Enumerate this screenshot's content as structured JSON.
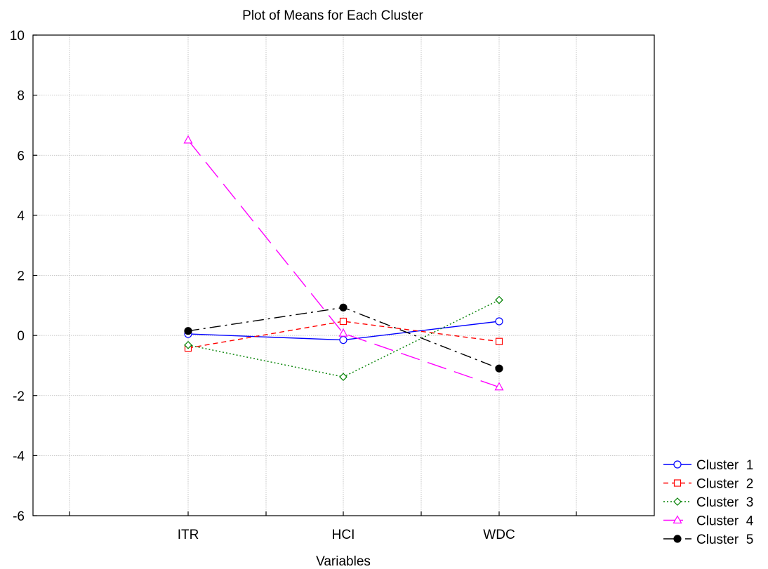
{
  "chart_data": {
    "type": "line",
    "title": "Plot of Means for Each Cluster",
    "xlabel": "Variables",
    "ylabel": "",
    "categories": [
      "ITR",
      "HCI",
      "WDC"
    ],
    "ylim": [
      -6,
      10
    ],
    "yticks": [
      "10",
      "8",
      "6",
      "4",
      "2",
      "0",
      "-2",
      "-4",
      "-6"
    ],
    "ytick_values": [
      10,
      8,
      6,
      4,
      2,
      0,
      -2,
      -4,
      -6
    ],
    "grid": true,
    "legend_position": "bottom-right outside plot",
    "series": [
      {
        "name": "Cluster  1",
        "values": [
          0.05,
          -0.15,
          0.47
        ],
        "color": "#0000ff",
        "dash": "solid",
        "marker": "circle-open"
      },
      {
        "name": "Cluster  2",
        "values": [
          -0.42,
          0.47,
          -0.2
        ],
        "color": "#ff0000",
        "dash": "dashed",
        "marker": "square-open"
      },
      {
        "name": "Cluster  3",
        "values": [
          -0.32,
          -1.38,
          1.18
        ],
        "color": "#008000",
        "dash": "dotted",
        "marker": "diamond-open"
      },
      {
        "name": "Cluster  4",
        "values": [
          6.5,
          0.07,
          -1.72
        ],
        "color": "#ff00ff",
        "dash": "long-dash",
        "marker": "triangle-open"
      },
      {
        "name": "Cluster  5",
        "values": [
          0.15,
          0.93,
          -1.1
        ],
        "color": "#000000",
        "dash": "dash-dot",
        "marker": "circle-filled"
      }
    ]
  }
}
